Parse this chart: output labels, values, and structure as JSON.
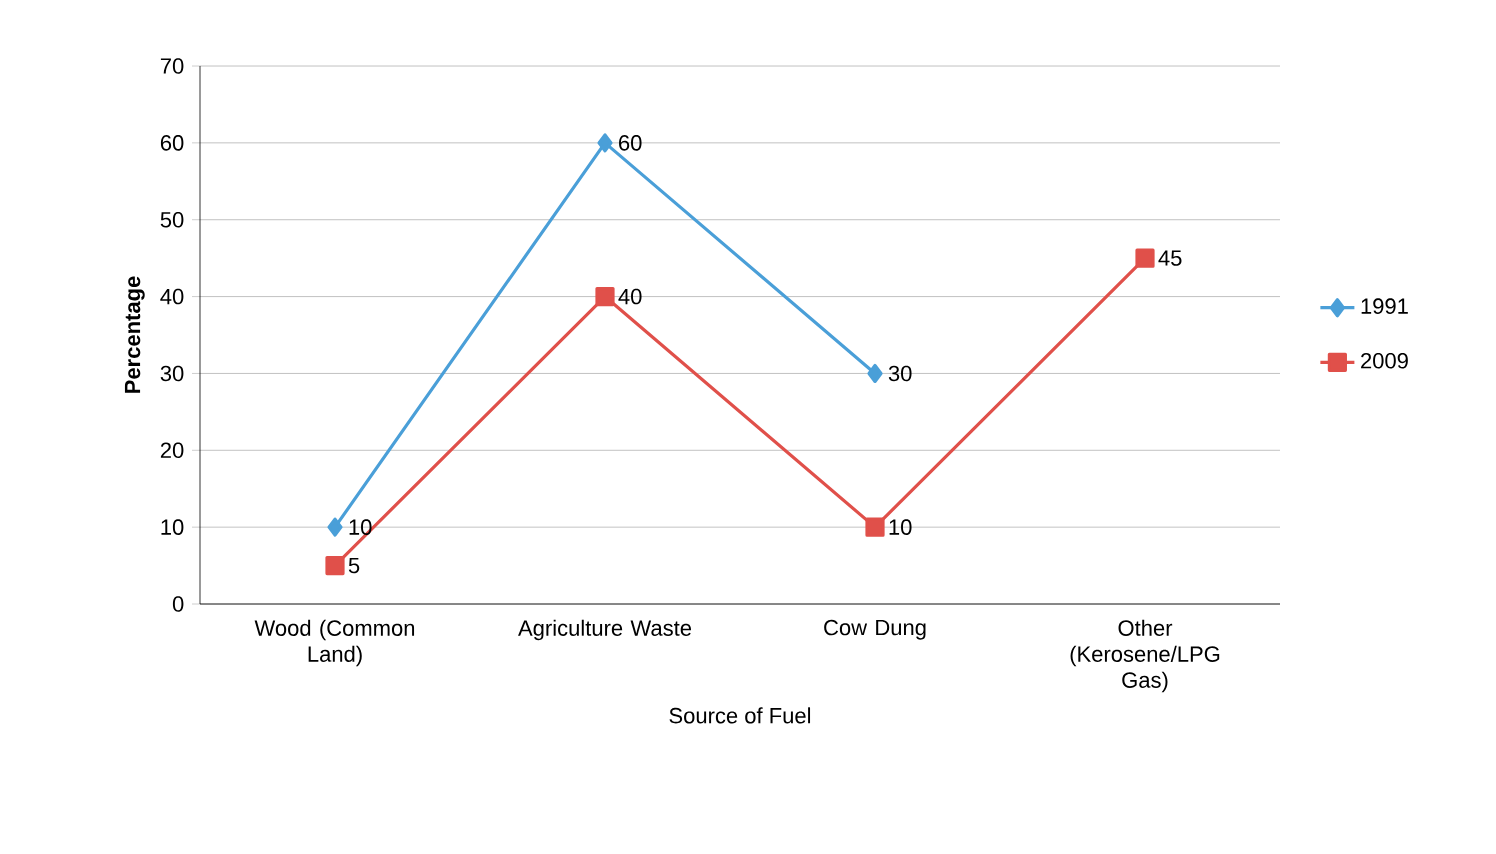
{
  "chart_data": {
    "type": "line",
    "xlabel": "Source of Fuel",
    "ylabel": "Percentage",
    "categories": [
      "Wood (Common Land)",
      "Agriculture Waste",
      "Cow Dung",
      "Other (Kerosene/LPG Gas)"
    ],
    "series": [
      {
        "name": "1991",
        "color": "#4a9fd8",
        "marker": "diamond",
        "values": [
          10,
          60,
          30,
          null
        ]
      },
      {
        "name": "2009",
        "color": "#e0504a",
        "marker": "square",
        "values": [
          5,
          40,
          10,
          45
        ]
      }
    ],
    "ylim": [
      0,
      70
    ],
    "yticks": [
      0,
      10,
      20,
      30,
      40,
      50,
      60,
      70
    ],
    "grid": "y",
    "legend": "right",
    "data_labels": true
  }
}
